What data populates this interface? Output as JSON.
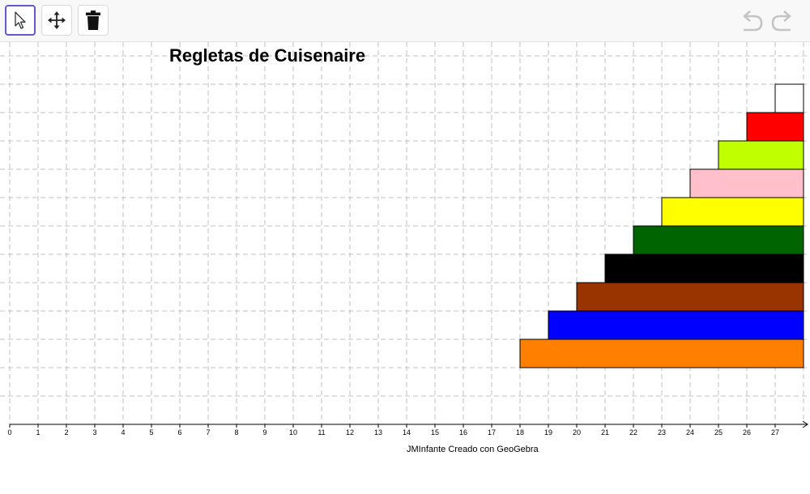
{
  "toolbar": {
    "tools": [
      {
        "name": "select-tool",
        "icon": "pointer-arrow-icon",
        "selected": true
      },
      {
        "name": "move-tool",
        "icon": "move-arrows-icon",
        "selected": false
      },
      {
        "name": "delete-tool",
        "icon": "trash-icon",
        "selected": false
      }
    ],
    "undo_icon": "undo-icon",
    "redo_icon": "redo-icon",
    "accent_color": "#6557d2"
  },
  "canvas": {
    "title": "Regletas de Cuisenaire",
    "credit": "JMInfante Creado con GeoGebra",
    "x_axis": {
      "ticks": [
        "0",
        "1",
        "2",
        "3",
        "4",
        "5",
        "6",
        "7",
        "8",
        "9",
        "10",
        "11",
        "12",
        "13",
        "14",
        "15",
        "16",
        "17",
        "18",
        "19",
        "20",
        "21",
        "22",
        "23",
        "24",
        "25",
        "26",
        "27"
      ],
      "grid": "dashed"
    },
    "rods": [
      {
        "length": 1,
        "color": "#ffffff",
        "color_name": "white"
      },
      {
        "length": 2,
        "color": "#ff0000",
        "color_name": "red"
      },
      {
        "length": 3,
        "color": "#bfff00",
        "color_name": "light-green"
      },
      {
        "length": 4,
        "color": "#ffc0cb",
        "color_name": "pink"
      },
      {
        "length": 5,
        "color": "#ffff00",
        "color_name": "yellow"
      },
      {
        "length": 6,
        "color": "#006400",
        "color_name": "dark-green"
      },
      {
        "length": 7,
        "color": "#000000",
        "color_name": "black"
      },
      {
        "length": 8,
        "color": "#993300",
        "color_name": "brown"
      },
      {
        "length": 9,
        "color": "#0000ff",
        "color_name": "blue"
      },
      {
        "length": 10,
        "color": "#ff7f00",
        "color_name": "orange"
      }
    ]
  }
}
